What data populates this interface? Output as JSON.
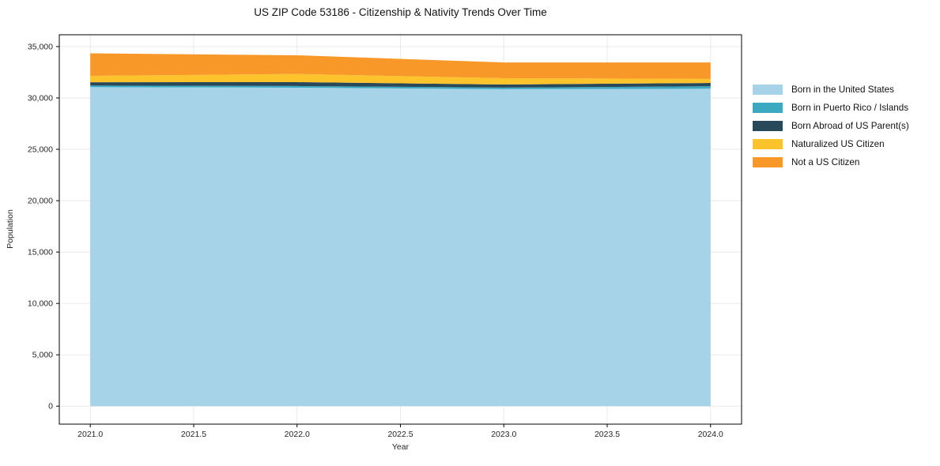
{
  "chart_data": {
    "type": "area",
    "stacked": true,
    "title": "US ZIP Code 53186 - Citizenship & Nativity Trends Over Time",
    "xlabel": "Year",
    "ylabel": "Population",
    "x": [
      2021,
      2022,
      2023,
      2024
    ],
    "series": [
      {
        "name": "Born in the United States",
        "color": "#a6d3e8",
        "values": [
          31050,
          31000,
          30850,
          30900
        ]
      },
      {
        "name": "Born in Puerto Rico / Islands",
        "color": "#3ba9c2",
        "values": [
          160,
          160,
          160,
          240
        ]
      },
      {
        "name": "Born Abroad of US Parent(s)",
        "color": "#29485a",
        "values": [
          320,
          380,
          300,
          320
        ]
      },
      {
        "name": "Naturalized US Citizen",
        "color": "#fcc32d",
        "values": [
          620,
          800,
          610,
          390
        ]
      },
      {
        "name": "Not a US Citizen",
        "color": "#f89828",
        "values": [
          2190,
          1810,
          1530,
          1600
        ]
      }
    ],
    "totals": [
      34340,
      34150,
      33450,
      33450
    ],
    "xlim": [
      2020.85,
      2024.15
    ],
    "ylim": [
      -1750,
      36150
    ],
    "xticks": {
      "values": [
        2021.0,
        2021.5,
        2022.0,
        2022.5,
        2023.0,
        2023.5,
        2024.0
      ],
      "labels": [
        "2021.0",
        "2021.5",
        "2022.0",
        "2022.5",
        "2023.0",
        "2023.5",
        "2024.0"
      ]
    },
    "yticks": {
      "values": [
        0,
        5000,
        10000,
        15000,
        20000,
        25000,
        30000,
        35000
      ],
      "labels": [
        "0",
        "5,000",
        "10,000",
        "15,000",
        "20,000",
        "25,000",
        "30,000",
        "35,000"
      ]
    },
    "grid": true,
    "legend_position": "right",
    "colors": {
      "grid": "#e9e9e9",
      "spine": "#000000",
      "background": "#ffffff"
    }
  }
}
